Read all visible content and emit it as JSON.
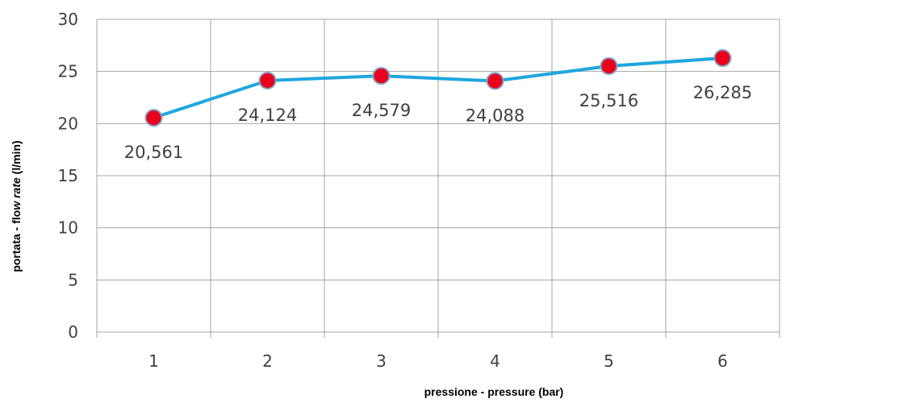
{
  "chart_data": {
    "type": "line",
    "x": [
      "1",
      "2",
      "3",
      "4",
      "5",
      "6"
    ],
    "series": [
      {
        "values": [
          20.561,
          24.124,
          24.579,
          24.088,
          25.516,
          26.285
        ],
        "labels": [
          "20,561",
          "24,124",
          "24,579",
          "24,088",
          "25,516",
          "26,285"
        ],
        "line_color": "#1fa7de",
        "marker_color": "#e8001c"
      }
    ],
    "xlabel": "pressione - pressure  (bar)",
    "ylabel_parts": [
      "portata - flo",
      "w ",
      "rate",
      " (l/min)"
    ],
    "ylim": [
      0,
      30
    ],
    "yticks": [
      0,
      5,
      10,
      15,
      20,
      25,
      30
    ],
    "grid": true,
    "legend": "none"
  }
}
